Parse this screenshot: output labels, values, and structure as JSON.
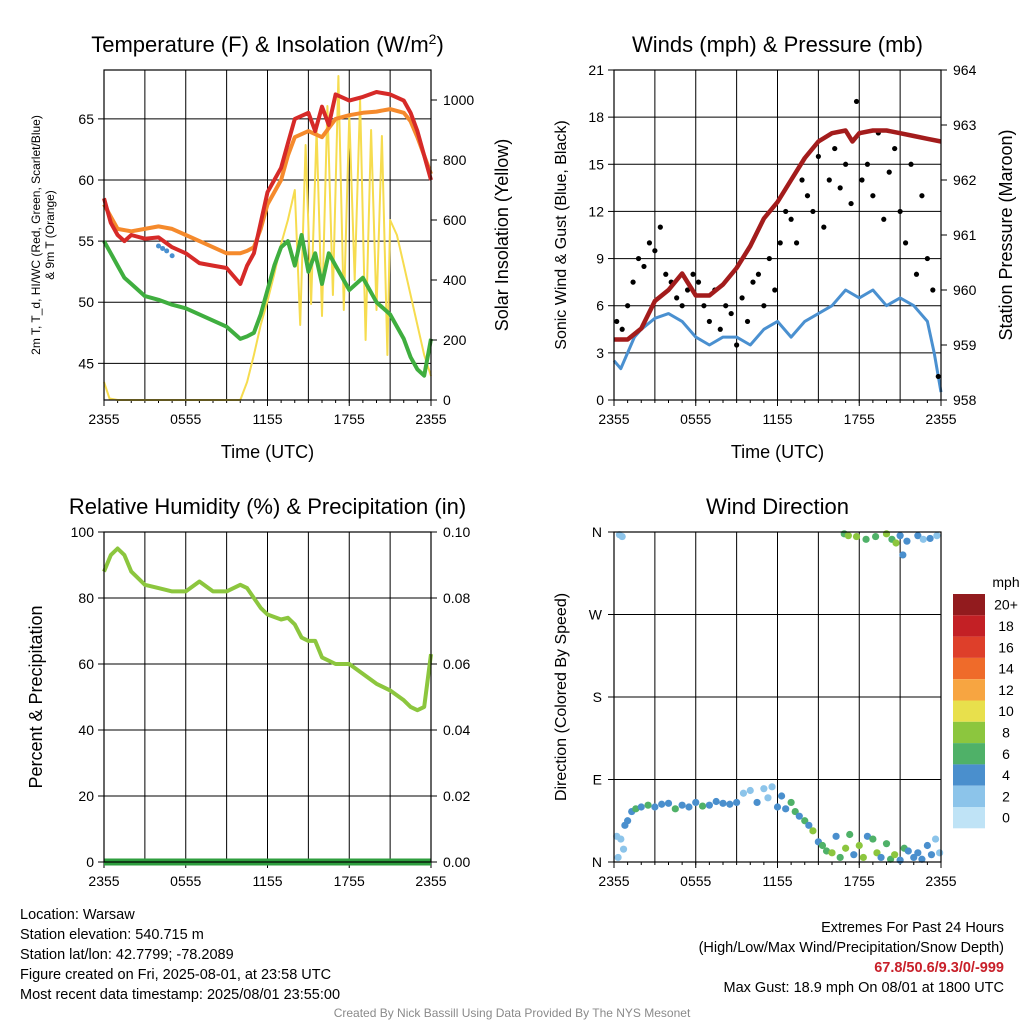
{
  "colors": {
    "temp_red": "#d62a28",
    "dewpoint_green": "#3fae3f",
    "heatindex_blue": "#4a90d0",
    "temp9m_orange": "#f58a2c",
    "insolation_yellow": "#f6dc4f",
    "wind_blue": "#4a90d0",
    "gust_black": "#000000",
    "pressure_maroon": "#a31c1c",
    "rh_green": "#8cc63e",
    "precip_green": "#2e9e3e",
    "extremes_red": "#c8202a"
  },
  "chart_data": [
    {
      "id": "temperature",
      "type": "line",
      "title": "Temperature (F) & Insolation (W/m²)",
      "xlabel": "Time (UTC)",
      "ylabel_left": "2m T, T_d, HI/WC (Red, Green, Scarlet/Blue) & 9m T (Orange)",
      "ylabel_right": "Solar Insolation (Yellow)",
      "x_ticks": [
        "2355",
        "0555",
        "1155",
        "1755",
        "2355"
      ],
      "ylim_left": [
        42,
        69
      ],
      "yticks_left": [
        45,
        50,
        55,
        60,
        65
      ],
      "ylim_right": [
        0,
        1100
      ],
      "yticks_right": [
        0,
        200,
        400,
        600,
        800,
        1000
      ],
      "grid": true,
      "series": [
        {
          "name": "2m T",
          "color": "#d62a28",
          "x": [
            0,
            0.5,
            1,
            1.5,
            2,
            3,
            4,
            5,
            6,
            7,
            8,
            9,
            10,
            10.5,
            11,
            11.5,
            12,
            13,
            13.5,
            14,
            15,
            15.5,
            16,
            16.5,
            17,
            18,
            19,
            20,
            21,
            22,
            22.5,
            23,
            23.5,
            24
          ],
          "y": [
            58.5,
            56.5,
            55.5,
            55,
            55.5,
            55.2,
            55.3,
            54.5,
            54,
            53.2,
            53,
            52.8,
            51.5,
            53,
            54,
            56.5,
            59,
            61,
            63,
            65,
            65.5,
            64,
            66,
            64.5,
            67,
            66.5,
            66.8,
            67.2,
            67,
            66.5,
            65.5,
            64,
            62,
            60
          ]
        },
        {
          "name": "2m Td",
          "color": "#3fae3f",
          "x": [
            0,
            0.5,
            1,
            1.5,
            2,
            3,
            4,
            5,
            6,
            7,
            8,
            9,
            10,
            10.5,
            11,
            11.5,
            12,
            12.5,
            13,
            13.5,
            14,
            14.5,
            15,
            15.5,
            16,
            16.5,
            17,
            18,
            19,
            20,
            21,
            22,
            22.5,
            23,
            23.5,
            24
          ],
          "y": [
            55,
            54,
            53,
            52,
            51.5,
            50.5,
            50.2,
            49.8,
            49.5,
            49,
            48.5,
            48,
            47,
            47.2,
            47.5,
            49,
            51,
            53,
            54.5,
            55,
            53,
            55.5,
            52.5,
            54,
            51.5,
            54,
            53,
            51,
            52,
            50,
            49,
            47,
            45.5,
            44.5,
            44,
            47
          ]
        },
        {
          "name": "HI/WC",
          "color": "#4a90d0",
          "x": [
            4.0,
            4.3,
            4.6,
            5.0
          ],
          "y": [
            54.6,
            54.4,
            54.2,
            53.8
          ]
        },
        {
          "name": "9m T",
          "color": "#f58a2c",
          "x": [
            0,
            0.5,
            1,
            2,
            3,
            4,
            5,
            6,
            7,
            8,
            9,
            10,
            10.5,
            11,
            11.5,
            12,
            13,
            13.5,
            14,
            15,
            16,
            17,
            18,
            19,
            20,
            21,
            22,
            22.5,
            23,
            23.5,
            24
          ],
          "y": [
            58,
            57,
            56,
            55.8,
            56,
            56.2,
            56,
            55.5,
            55,
            54.5,
            54,
            54,
            54.2,
            54.5,
            56,
            58,
            60,
            62,
            63.5,
            64,
            63.5,
            65,
            65.3,
            65.5,
            65.6,
            65.8,
            65.5,
            64.8,
            63.5,
            62,
            60.5
          ]
        },
        {
          "name": "Solar Insolation",
          "color": "#f6dc4f",
          "axis": "right",
          "x": [
            0,
            0.4,
            1,
            2,
            3,
            4,
            5,
            6,
            7,
            8,
            9,
            10,
            10.5,
            11,
            11.5,
            12,
            12.5,
            13,
            13.5,
            14,
            14.4,
            14.8,
            15.2,
            15.6,
            16,
            16.4,
            16.8,
            17.2,
            17.6,
            18,
            18.4,
            18.8,
            19.2,
            19.6,
            20,
            20.4,
            20.8,
            21,
            21.5,
            22,
            22.5,
            23,
            23.5,
            24
          ],
          "y": [
            60,
            5,
            0,
            0,
            0,
            0,
            0,
            0,
            0,
            0,
            0,
            0,
            60,
            150,
            250,
            330,
            420,
            520,
            600,
            700,
            250,
            850,
            320,
            900,
            280,
            980,
            350,
            1080,
            300,
            950,
            400,
            1000,
            200,
            900,
            300,
            880,
            150,
            600,
            550,
            450,
            350,
            250,
            150,
            80
          ]
        }
      ]
    },
    {
      "id": "winds",
      "type": "line",
      "title": "Winds (mph) & Pressure (mb)",
      "xlabel": "Time (UTC)",
      "ylabel_left": "Sonic Wind & Gust (Blue, Black)",
      "ylabel_right": "Station Pressure (Maroon)",
      "x_ticks": [
        "2355",
        "0555",
        "1155",
        "1755",
        "2355"
      ],
      "ylim_left": [
        0,
        21
      ],
      "yticks_left": [
        0,
        3,
        6,
        9,
        12,
        15,
        18,
        21
      ],
      "ylim_right": [
        958,
        964
      ],
      "yticks_right": [
        958,
        959,
        960,
        961,
        962,
        963,
        964
      ],
      "grid": true,
      "series": [
        {
          "name": "Sonic Wind",
          "color": "#4a90d0",
          "x": [
            0,
            0.5,
            1,
            1.5,
            2,
            3,
            4,
            5,
            6,
            7,
            8,
            9,
            10,
            11,
            12,
            13,
            14,
            15,
            16,
            17,
            18,
            19,
            20,
            21,
            22,
            23,
            23.5,
            24
          ],
          "y": [
            2.5,
            2,
            3,
            4,
            4.5,
            5.2,
            5.5,
            5,
            4,
            3.5,
            4,
            4,
            3.5,
            4.5,
            5,
            4,
            5,
            5.5,
            6,
            7,
            6.5,
            7,
            6,
            6.5,
            6,
            5,
            3,
            0.5
          ]
        },
        {
          "name": "Gust",
          "color": "#000000",
          "mode": "markers",
          "x": [
            0.2,
            0.6,
            1.0,
            1.4,
            1.8,
            2.2,
            2.6,
            3.0,
            3.4,
            3.8,
            4.2,
            4.6,
            5.0,
            5.4,
            5.8,
            6.2,
            6.6,
            7.0,
            7.4,
            7.8,
            8.2,
            8.6,
            9.0,
            9.4,
            9.8,
            10.2,
            10.6,
            11.0,
            11.4,
            11.8,
            12.2,
            12.6,
            13.0,
            13.4,
            13.8,
            14.2,
            14.6,
            15.0,
            15.4,
            15.8,
            16.2,
            16.6,
            17.0,
            17.4,
            17.8,
            18.2,
            18.6,
            19.0,
            19.4,
            19.8,
            20.2,
            20.6,
            21.0,
            21.4,
            21.8,
            22.2,
            22.6,
            23.0,
            23.4,
            23.8
          ],
          "y": [
            5,
            4.5,
            6,
            7.5,
            9,
            8.5,
            10,
            9.5,
            11,
            8,
            7.5,
            6.5,
            6,
            7,
            8,
            7.5,
            6,
            5,
            7,
            4.5,
            6,
            5.5,
            3.5,
            6.5,
            5,
            7.5,
            8,
            6,
            9,
            7,
            10,
            12,
            11.5,
            10,
            14,
            13,
            12,
            15.5,
            11,
            14,
            16,
            13.5,
            15,
            12.5,
            19,
            14,
            15,
            13,
            17,
            11.5,
            14.5,
            16,
            12,
            10,
            15,
            8,
            13,
            9,
            7,
            1.5
          ]
        },
        {
          "name": "Station Pressure",
          "color": "#a31c1c",
          "axis": "right",
          "x": [
            0,
            1,
            2,
            3,
            4,
            5,
            6,
            7,
            8,
            9,
            10,
            11,
            12,
            13,
            14,
            15,
            16,
            17,
            17.5,
            18,
            19,
            20,
            21,
            22,
            23,
            24
          ],
          "y": [
            959.1,
            959.1,
            959.3,
            959.8,
            960.0,
            960.3,
            959.9,
            959.9,
            960.1,
            960.4,
            960.8,
            961.3,
            961.6,
            962.0,
            962.4,
            962.7,
            962.85,
            962.9,
            962.7,
            962.85,
            962.9,
            962.9,
            962.85,
            962.8,
            962.75,
            962.7
          ]
        }
      ]
    },
    {
      "id": "humidity",
      "type": "line",
      "title": "Relative Humidity (%) & Precipitation (in)",
      "ylabel_left": "Percent & Precipitation",
      "x_ticks": [
        "2355",
        "0555",
        "1155",
        "1755",
        "2355"
      ],
      "ylim_left": [
        0,
        100
      ],
      "yticks_left": [
        0,
        20,
        40,
        60,
        80,
        100
      ],
      "ylim_right": [
        0,
        0.1
      ],
      "yticks_right": [
        "0.00",
        "0.02",
        "0.04",
        "0.06",
        "0.08",
        "0.10"
      ],
      "grid": true,
      "series": [
        {
          "name": "Relative Humidity",
          "color": "#8cc63e",
          "x": [
            0,
            0.5,
            1,
            1.5,
            2,
            3,
            4,
            5,
            6,
            7,
            8,
            9,
            10,
            10.5,
            11,
            11.5,
            12,
            13,
            13.5,
            14,
            14.5,
            15,
            15.5,
            16,
            17,
            18,
            19,
            20,
            21,
            22,
            22.5,
            23,
            23.5,
            24
          ],
          "y": [
            88,
            93,
            95,
            93,
            88,
            84,
            83,
            82,
            82,
            85,
            82,
            82,
            84,
            83,
            80,
            77,
            75,
            73.5,
            74,
            72,
            68,
            67,
            67,
            62,
            60,
            60,
            57,
            54,
            52,
            49,
            47,
            46,
            47,
            63
          ]
        },
        {
          "name": "Precipitation",
          "color": "#2e9e3e",
          "axis": "right",
          "x": [
            0,
            24
          ],
          "y": [
            0,
            0
          ]
        }
      ]
    },
    {
      "id": "direction",
      "type": "scatter",
      "title": "Wind Direction",
      "ylabel_left": "Direction (Colored By Speed)",
      "x_ticks": [
        "2355",
        "0555",
        "1155",
        "1755",
        "2355"
      ],
      "ylim_left": [
        0,
        360
      ],
      "ytick_labels": [
        "N",
        "E",
        "S",
        "W",
        "N"
      ],
      "grid": true,
      "colorbar": {
        "title": "mph",
        "labels": [
          "0",
          "2",
          "4",
          "6",
          "8",
          "10",
          "12",
          "14",
          "16",
          "18",
          "20+"
        ],
        "colors": [
          "#bfe3f6",
          "#8cc4ea",
          "#4a8fcd",
          "#4fb168",
          "#8cc63e",
          "#e8e04c",
          "#f7a541",
          "#ef6b2a",
          "#de3f2a",
          "#c32025",
          "#921b1e"
        ]
      },
      "series": [
        {
          "name": "Direction",
          "x": [
            0.2,
            0.3,
            0.5,
            0.7,
            0.8,
            1.0,
            1.3,
            1.6,
            2.0,
            2.5,
            3.0,
            3.5,
            4.0,
            4.5,
            5.0,
            5.5,
            6.0,
            6.5,
            7.0,
            7.5,
            8.0,
            8.5,
            9.0,
            9.5,
            10.0,
            10.5,
            11.0,
            11.3,
            11.6,
            12.0,
            12.3,
            12.6,
            13.0,
            13.3,
            13.6,
            14.0,
            14.3,
            14.6,
            15.0,
            15.3,
            15.6,
            16.0,
            16.3,
            16.6,
            17.0,
            17.3,
            17.6,
            18.0,
            18.3,
            18.6,
            19.0,
            19.3,
            19.6,
            20.0,
            20.3,
            20.6,
            21.0,
            21.3,
            21.6,
            22.0,
            22.3,
            22.6,
            23.0,
            23.3,
            23.6,
            23.9,
            0.4,
            0.6,
            16.9,
            17.2,
            17.8,
            18.5,
            19.2,
            20.0,
            20.4,
            20.7,
            21.0,
            21.5,
            22.3,
            22.7,
            23.2,
            23.7,
            21.2
          ],
          "y": [
            28,
            5,
            25,
            14,
            40,
            45,
            55,
            58,
            60,
            62,
            60,
            63,
            64,
            58,
            62,
            60,
            65,
            61,
            62,
            66,
            64,
            63,
            65,
            75,
            78,
            65,
            80,
            70,
            82,
            60,
            72,
            58,
            65,
            55,
            50,
            45,
            40,
            34,
            22,
            18,
            12,
            10,
            28,
            5,
            15,
            30,
            8,
            18,
            5,
            28,
            25,
            10,
            5,
            20,
            3,
            8,
            2,
            15,
            12,
            5,
            10,
            3,
            18,
            8,
            25,
            10,
            357,
            355,
            358,
            356,
            355,
            352,
            355,
            358,
            352,
            348,
            356,
            350,
            356,
            352,
            353,
            356,
            335
          ],
          "speed": [
            1,
            2,
            1,
            1,
            4,
            3,
            4,
            6,
            4,
            5,
            4,
            4,
            3,
            6,
            4,
            4,
            4,
            5,
            4,
            3,
            4,
            4,
            3,
            2,
            2,
            3,
            2,
            2,
            2,
            4,
            3,
            4,
            6,
            5,
            3,
            6,
            4,
            7,
            4,
            6,
            5,
            7,
            4,
            6,
            8,
            6,
            4,
            7,
            8,
            4,
            6,
            7,
            4,
            5,
            6,
            7,
            4,
            6,
            3,
            4,
            4,
            3,
            4,
            3,
            2,
            2,
            2,
            2,
            6,
            7,
            8,
            6,
            6,
            7,
            5,
            7,
            4,
            4,
            3,
            2,
            3,
            2,
            4
          ]
        }
      ]
    }
  ],
  "info": {
    "location": "Location: Warsaw",
    "elevation": "Station elevation: 540.715 m",
    "latlon": "Station lat/lon: 42.7799; -78.2089",
    "created": "Figure created on Fri, 2025-08-01, at 23:58 UTC",
    "recent": "Most recent data timestamp: 2025/08/01 23:55:00"
  },
  "extremes": {
    "title": "Extremes For Past 24 Hours",
    "subtitle": "(High/Low/Max Wind/Precipitation/Snow Depth)",
    "values": "67.8/50.6/9.3/0/-999",
    "max_gust": "Max Gust: 18.9 mph On 08/01 at 1800 UTC"
  },
  "credit": "Created By Nick Bassill Using Data Provided By The NYS Mesonet"
}
